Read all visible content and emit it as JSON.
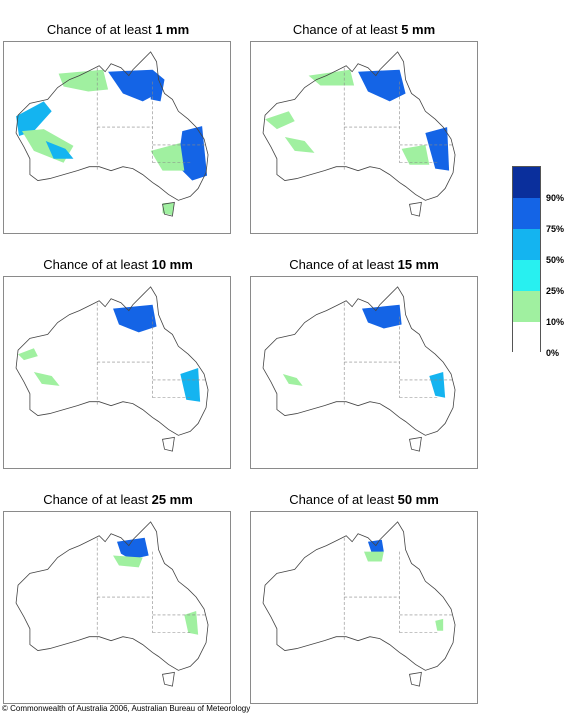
{
  "panels": [
    {
      "prefix": "Chance of at least ",
      "amount": "1 mm"
    },
    {
      "prefix": "Chance of at least ",
      "amount": "5 mm"
    },
    {
      "prefix": "Chance of at least ",
      "amount": "10 mm"
    },
    {
      "prefix": "Chance of at least ",
      "amount": "15 mm"
    },
    {
      "prefix": "Chance of at least ",
      "amount": "25 mm"
    },
    {
      "prefix": "Chance of at least ",
      "amount": "50 mm"
    }
  ],
  "legend": {
    "labels": [
      "90%",
      "75%",
      "50%",
      "25%",
      "10%",
      "0%"
    ],
    "colors": [
      "#0a2f9c",
      "#1464e6",
      "#14b4f0",
      "#28f0f0",
      "#a0f0a0",
      "#ffffff"
    ]
  },
  "copyright": "© Commonwealth of Australia 2006, Australian Bureau of Meteorology"
}
